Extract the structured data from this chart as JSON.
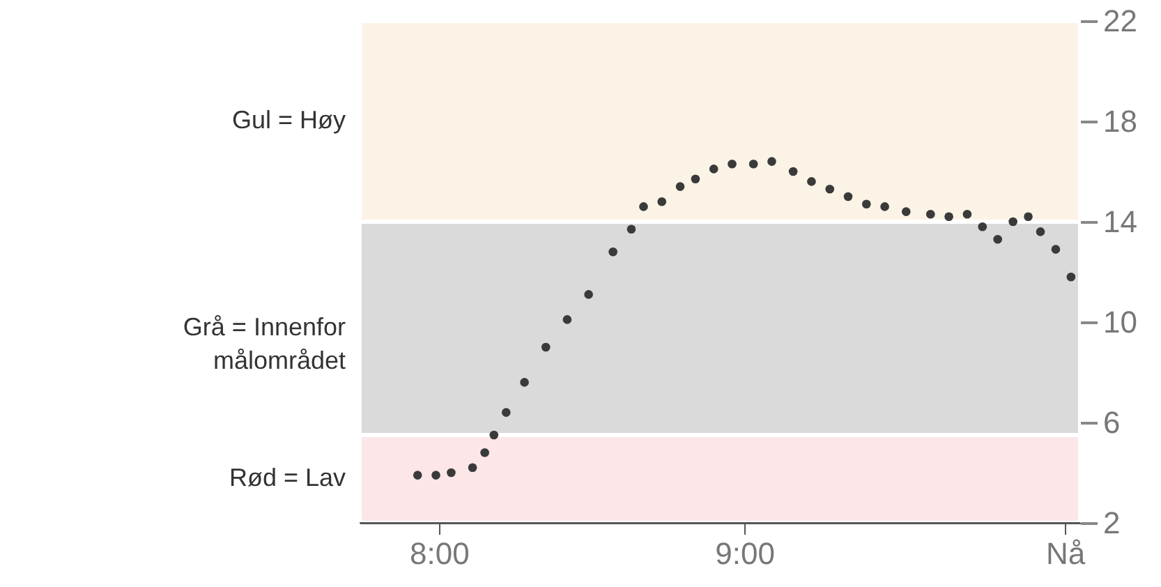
{
  "chart_data": {
    "type": "scatter",
    "x": [
      7.93,
      7.99,
      8.04,
      8.11,
      8.15,
      8.18,
      8.22,
      8.28,
      8.35,
      8.42,
      8.49,
      8.57,
      8.63,
      8.67,
      8.73,
      8.79,
      8.84,
      8.9,
      8.96,
      9.03,
      9.09,
      9.16,
      9.22,
      9.28,
      9.34,
      9.4,
      9.46,
      9.53,
      9.61,
      9.67,
      9.73,
      9.78,
      9.83,
      9.88,
      9.93,
      9.97,
      10.02,
      10.07
    ],
    "series": [
      {
        "color": "#3a3a3a",
        "values": [
          3.9,
          3.9,
          4.0,
          4.2,
          4.8,
          5.5,
          6.4,
          7.6,
          9.0,
          10.1,
          11.1,
          12.8,
          13.7,
          14.6,
          14.8,
          15.4,
          15.7,
          16.1,
          16.3,
          16.3,
          16.4,
          16.0,
          15.6,
          15.3,
          15.0,
          14.7,
          14.6,
          14.4,
          14.3,
          14.2,
          14.3,
          13.8,
          13.3,
          14.0,
          14.2,
          13.6,
          12.9,
          11.8
        ]
      }
    ],
    "xlim": [
      7.74,
      10.1
    ],
    "xticks": [
      {
        "value": 8,
        "label": "8:00"
      },
      {
        "value": 9,
        "label": "9:00"
      },
      {
        "value": 10.05,
        "label": "Nå"
      }
    ],
    "ylim": [
      2,
      22
    ],
    "yticks": [
      2,
      6,
      10,
      14,
      18,
      22
    ],
    "bands": [
      {
        "axis": "y",
        "from": 14,
        "to": 22,
        "label": "Gul = Høy",
        "color": "#fbf4e6"
      },
      {
        "axis": "y",
        "from": 5.5,
        "to": 14,
        "label": "Grå = Innenfor målområdet",
        "color": "#dadada"
      },
      {
        "axis": "y",
        "from": 2,
        "to": 5.5,
        "label": "Rød = Lav",
        "color": "#fde6e8"
      }
    ],
    "marker": "circle",
    "grid": false
  }
}
